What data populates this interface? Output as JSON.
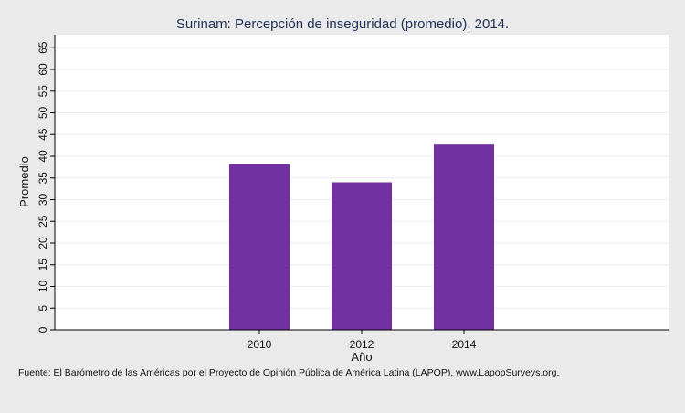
{
  "chart_data": {
    "type": "bar",
    "title": "Surinam: Percepción de inseguridad (promedio), 2014.",
    "xlabel": "Año",
    "ylabel": "Promedio",
    "categories": [
      "2010",
      "2012",
      "2014"
    ],
    "values": [
      38.2,
      34.0,
      42.7
    ],
    "ylim": [
      0,
      68
    ],
    "yticks": [
      0,
      5,
      10,
      15,
      20,
      25,
      30,
      35,
      40,
      45,
      50,
      55,
      60,
      65
    ],
    "grid": true,
    "bar_color": "#7030a0",
    "source": "Fuente: El Barómetro de las Américas por el Proyecto de Opinión Pública de América Latina (LAPOP), www.LapopSurveys.org."
  }
}
